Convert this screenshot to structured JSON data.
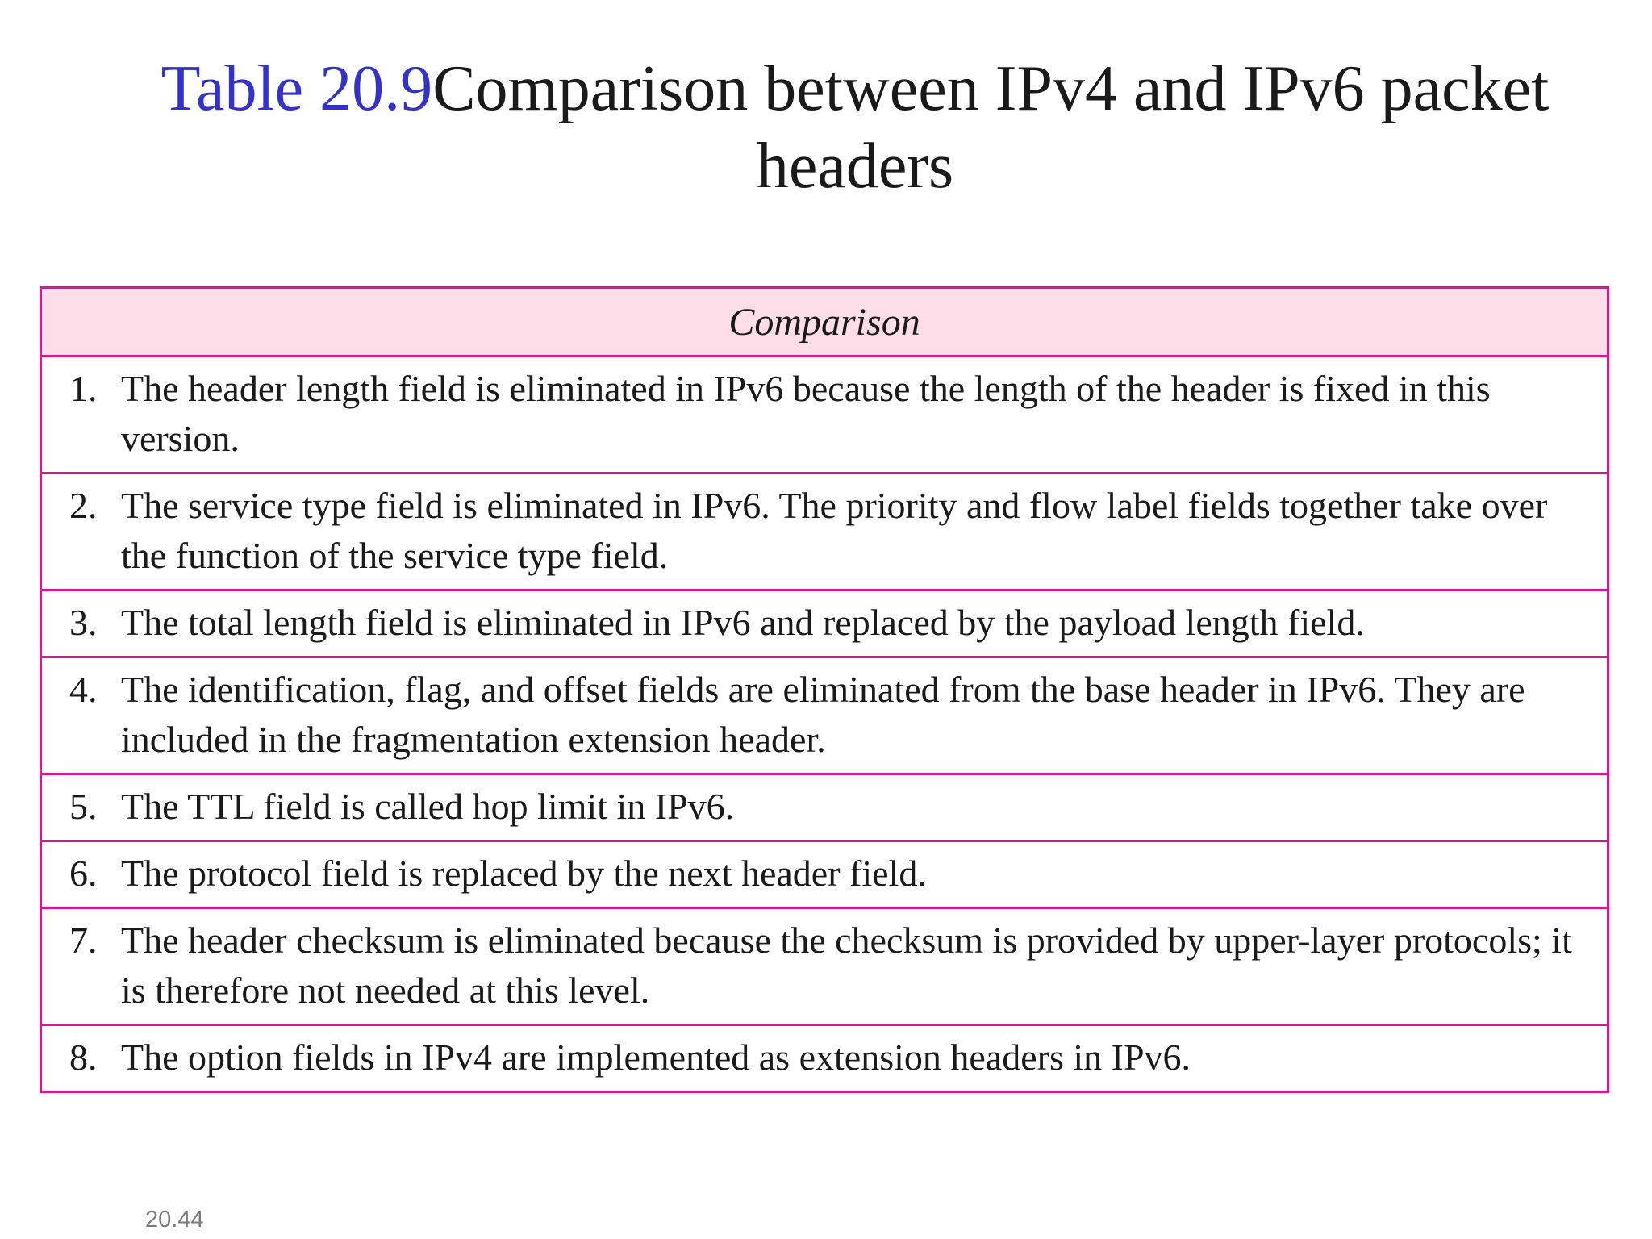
{
  "title": {
    "number": "Table 20.9",
    "text": "Comparison between IPv4 and IPv6 packet headers"
  },
  "table": {
    "header": "Comparison",
    "rows": [
      {
        "n": "1.",
        "text": "The header length field is eliminated in IPv6 because the length of the header is fixed in this version."
      },
      {
        "n": "2.",
        "text": "The service type field is eliminated in IPv6. The priority and flow label fields together take over the function of the service type field."
      },
      {
        "n": "3.",
        "text": "The total length field is eliminated in IPv6 and replaced by the payload length field."
      },
      {
        "n": "4.",
        "text": "The identification, flag, and offset fields are eliminated from the base header in IPv6. They are included in the fragmentation extension header."
      },
      {
        "n": "5.",
        "text": "The TTL field is called hop limit in IPv6."
      },
      {
        "n": "6.",
        "text": "The protocol field is replaced by the next header field."
      },
      {
        "n": "7.",
        "text": "The header checksum is eliminated because the checksum is provided by upper-layer protocols; it is therefore not needed at this level."
      },
      {
        "n": "8.",
        "text": "The option fields in IPv4 are implemented as extension headers in IPv6."
      }
    ]
  },
  "footer": {
    "page": "20.44"
  },
  "colors": {
    "border": "#e0148c",
    "header_bg": "#fcdde8",
    "title_number": "#3333cc"
  }
}
